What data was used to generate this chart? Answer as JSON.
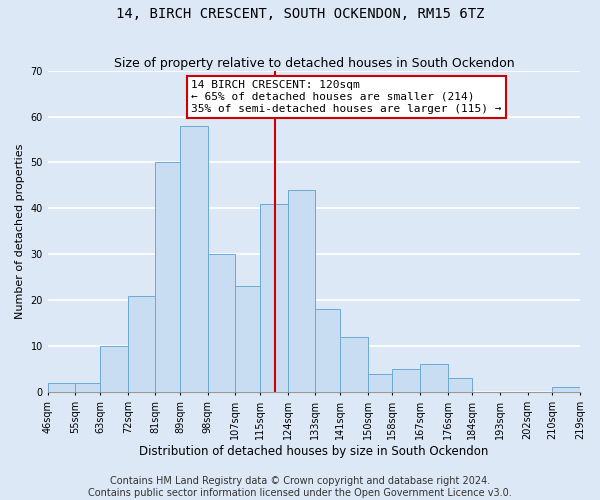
{
  "title": "14, BIRCH CRESCENT, SOUTH OCKENDON, RM15 6TZ",
  "subtitle": "Size of property relative to detached houses in South Ockendon",
  "xlabel": "Distribution of detached houses by size in South Ockendon",
  "ylabel": "Number of detached properties",
  "bin_edges": [
    46,
    55,
    63,
    72,
    81,
    89,
    98,
    107,
    115,
    124,
    133,
    141,
    150,
    158,
    167,
    176,
    184,
    193,
    202,
    210,
    219
  ],
  "bin_labels": [
    "46sqm",
    "55sqm",
    "63sqm",
    "72sqm",
    "81sqm",
    "89sqm",
    "98sqm",
    "107sqm",
    "115sqm",
    "124sqm",
    "133sqm",
    "141sqm",
    "150sqm",
    "158sqm",
    "167sqm",
    "176sqm",
    "184sqm",
    "193sqm",
    "202sqm",
    "210sqm",
    "219sqm"
  ],
  "counts": [
    2,
    2,
    10,
    21,
    50,
    58,
    30,
    23,
    41,
    44,
    18,
    12,
    4,
    5,
    6,
    3,
    0,
    0,
    0,
    1
  ],
  "bar_color": "#c9ddf2",
  "bar_edge_color": "#6aaad4",
  "reference_line_x": 120,
  "ylim": [
    0,
    70
  ],
  "yticks": [
    0,
    10,
    20,
    30,
    40,
    50,
    60,
    70
  ],
  "annotation_title": "14 BIRCH CRESCENT: 120sqm",
  "annotation_line1": "← 65% of detached houses are smaller (214)",
  "annotation_line2": "35% of semi-detached houses are larger (115) →",
  "annotation_box_facecolor": "#ffffff",
  "annotation_box_edgecolor": "#cc0000",
  "footer_line1": "Contains HM Land Registry data © Crown copyright and database right 2024.",
  "footer_line2": "Contains public sector information licensed under the Open Government Licence v3.0.",
  "background_color": "#dce8f5",
  "grid_color": "#ffffff",
  "title_fontsize": 10,
  "subtitle_fontsize": 9,
  "xlabel_fontsize": 8.5,
  "ylabel_fontsize": 8,
  "footer_fontsize": 7,
  "tick_fontsize": 7,
  "annotation_fontsize": 8
}
